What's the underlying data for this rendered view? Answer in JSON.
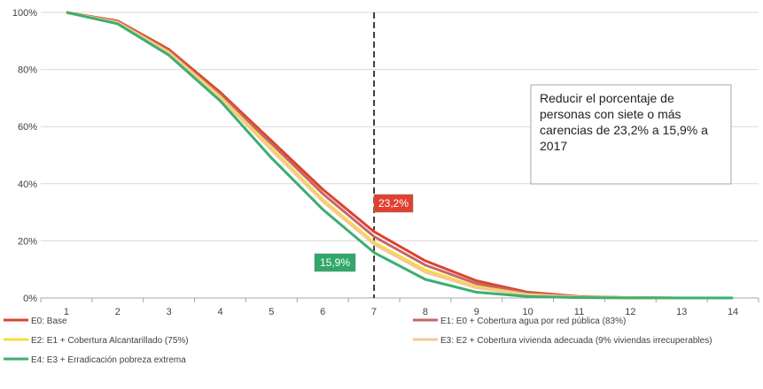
{
  "chart_data": {
    "type": "line",
    "title": "",
    "xlabel": "",
    "ylabel": "",
    "categories": [
      "1",
      "2",
      "3",
      "4",
      "5",
      "6",
      "7",
      "8",
      "9",
      "10",
      "11",
      "12",
      "13",
      "14"
    ],
    "ylim": [
      0,
      100
    ],
    "y_ticks": [
      "0%",
      "20%",
      "40%",
      "60%",
      "80%",
      "100%"
    ],
    "grid": "horizontal",
    "legend_position": "bottom",
    "series": [
      {
        "name": "E0: Base",
        "color": "#D9442E",
        "values": [
          100,
          97,
          87,
          72,
          55,
          38,
          23.2,
          13,
          6,
          2,
          0.5,
          0.1,
          0,
          0
        ]
      },
      {
        "name": "E1: E0 + Cobertura agua por red pública (83%)",
        "color": "#C8646B",
        "values": [
          100,
          96.8,
          86.5,
          71.2,
          54,
          36.5,
          21.5,
          11.5,
          5,
          1.6,
          0.4,
          0.1,
          0,
          0
        ]
      },
      {
        "name": "E2: E1 + Cobertura Alcantarillado (75%)",
        "color": "#F2E033",
        "values": [
          100,
          96.5,
          86,
          70.5,
          52.5,
          34.5,
          19.5,
          9.8,
          4,
          1.2,
          0.3,
          0.1,
          0,
          0
        ]
      },
      {
        "name": "E3: E2 + Cobertura vivienda adecuada (9% viviendas irrecuperables)",
        "color": "#F6C79A",
        "values": [
          100,
          96.4,
          85.7,
          70,
          51.8,
          33.8,
          18.8,
          9,
          3.5,
          1,
          0.25,
          0.05,
          0,
          0
        ]
      },
      {
        "name": "E4: E3 + Erradicación pobreza extrema",
        "color": "#3BAF6F",
        "values": [
          100,
          96,
          85,
          69,
          49,
          31,
          15.9,
          6.5,
          2,
          0.5,
          0.1,
          0,
          0,
          0
        ]
      }
    ],
    "reference_line": {
      "x": "7",
      "style": "dashed"
    },
    "annotations": [
      {
        "text": "23,2%",
        "series": 0,
        "x": "7",
        "y": 23.2,
        "color": "#E0402F"
      },
      {
        "text": "15,9%",
        "series": 4,
        "x": "7",
        "y": 15.9,
        "color": "#2FA86A"
      }
    ],
    "note": "Reducir el porcentaje de personas con siete o más carencias de 23,2% a 15,9% a 2017"
  }
}
